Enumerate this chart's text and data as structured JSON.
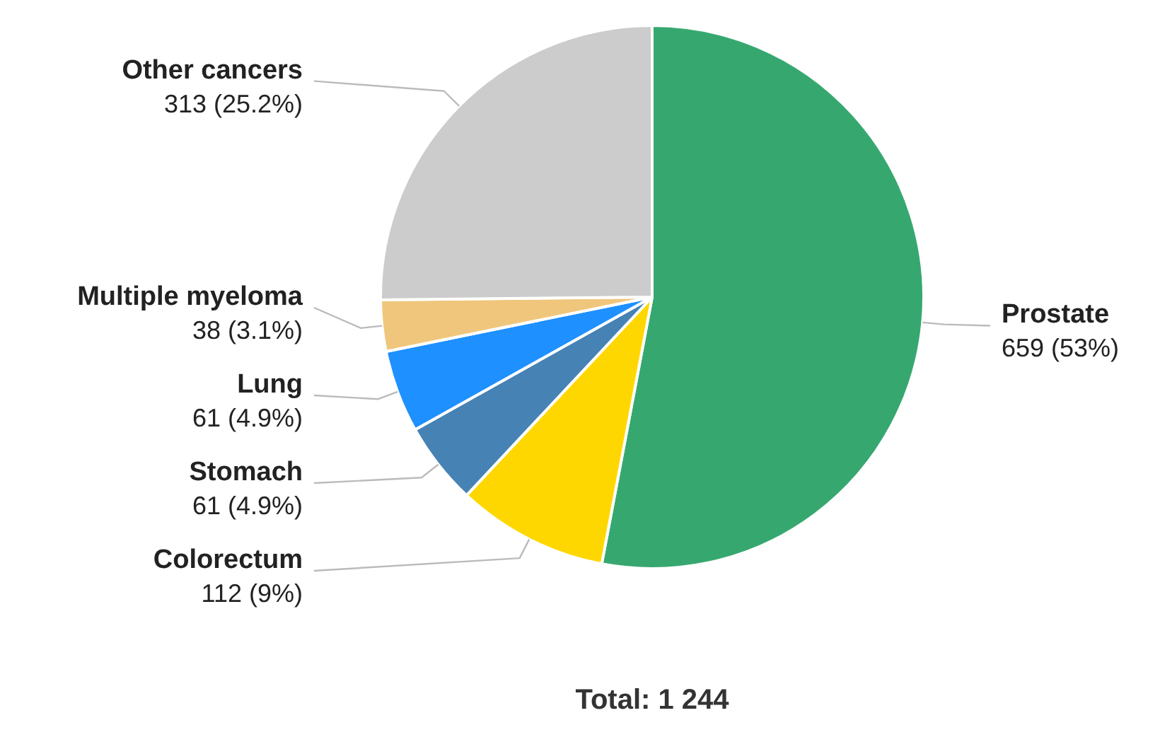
{
  "chart_data": {
    "type": "pie",
    "categories": [
      "Prostate",
      "Colorectum",
      "Stomach",
      "Lung",
      "Multiple myeloma",
      "Other cancers"
    ],
    "values": [
      659,
      112,
      61,
      61,
      38,
      313
    ],
    "colors": [
      "#36a86f",
      "#ffd700",
      "#4682b4",
      "#1e90ff",
      "#f0c67c",
      "#cccccc"
    ],
    "value_labels": [
      "659 (53%)",
      "112 (9%)",
      "61 (4.9%)",
      "61 (4.9%)",
      "38 (3.1%)",
      "313 (25.2%)"
    ],
    "annotations": [
      "Total: 1 244"
    ]
  }
}
